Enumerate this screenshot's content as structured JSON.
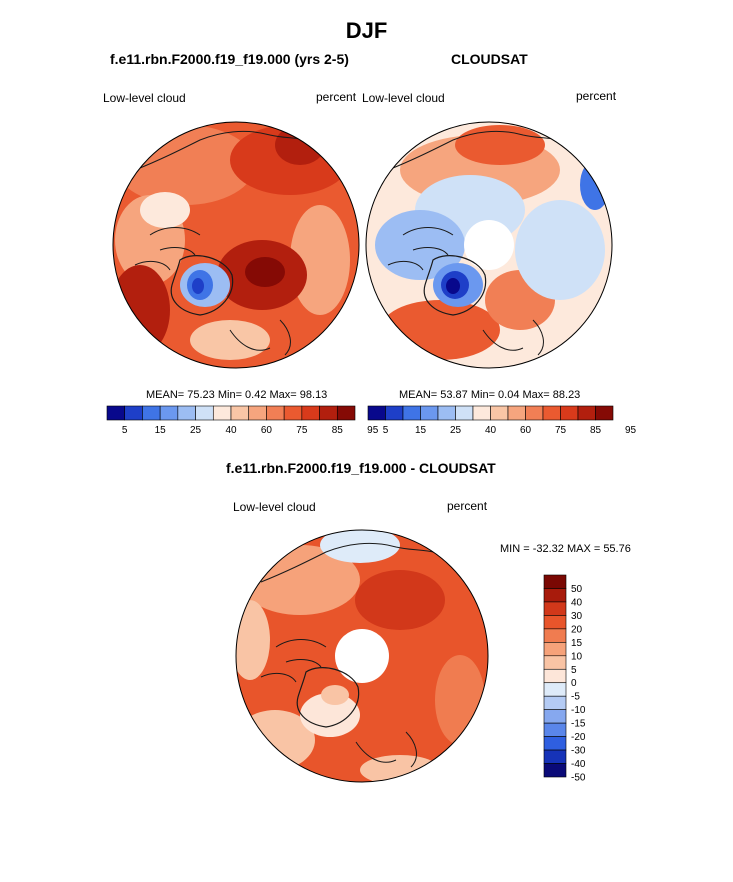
{
  "main_title": "DJF",
  "panel_model": {
    "title": "f.e11.rbn.F2000.f19_f19.000 (yrs 2-5)",
    "left_label": "Low-level cloud",
    "right_label": "percent",
    "stats": "MEAN=  75.23  Min=   0.42  Max=  98.13"
  },
  "panel_obs": {
    "title": "CLOUDSAT",
    "left_label": "Low-level cloud",
    "right_label": "percent",
    "stats": "MEAN=  53.87  Min=   0.04  Max=  88.23"
  },
  "panel_diff": {
    "title": "f.e11.rbn.F2000.f19_f19.000 - CLOUDSAT",
    "left_label": "Low-level cloud",
    "right_label": "percent",
    "minmax": "MIN = -32.32 MAX =  55.76"
  },
  "colors": {
    "abs_scale": [
      "#08088c",
      "#1e3fc8",
      "#3f74e6",
      "#6b98ef",
      "#9cbdf3",
      "#cfe1f7",
      "#fde9dc",
      "#f9c6a6",
      "#f6a57e",
      "#f17f55",
      "#ea5a30",
      "#d83a1b",
      "#b21f0e",
      "#850a05"
    ],
    "diff_scale": [
      "#0a0a78",
      "#1633b8",
      "#2f5fe0",
      "#5a86ea",
      "#86a8ef",
      "#b4cbf4",
      "#deebf9",
      "#fde6d9",
      "#f9c4a5",
      "#f6a27a",
      "#f07c50",
      "#e8552b",
      "#d2381a",
      "#a81b0c",
      "#7a0803"
    ],
    "coast": "#1a1a1a"
  },
  "chart_data": [
    {
      "type": "heatmap",
      "title": "f.e11.rbn.F2000.f19_f19.000 (yrs 2-5)",
      "variable": "Low-level cloud",
      "units": "percent",
      "projection": "north-polar stereographic",
      "mean": 75.23,
      "min": 0.42,
      "max": 98.13,
      "colorbar_levels": [
        5,
        10,
        15,
        20,
        25,
        30,
        40,
        50,
        60,
        70,
        75,
        80,
        85,
        90,
        95
      ],
      "colorbar_tick_labels": [
        "5",
        "15",
        "25",
        "40",
        "60",
        "75",
        "85",
        "95"
      ]
    },
    {
      "type": "heatmap",
      "title": "CLOUDSAT",
      "variable": "Low-level cloud",
      "units": "percent",
      "projection": "north-polar stereographic",
      "mean": 53.87,
      "min": 0.04,
      "max": 88.23,
      "colorbar_levels": [
        5,
        10,
        15,
        20,
        25,
        30,
        40,
        50,
        60,
        70,
        75,
        80,
        85,
        90,
        95
      ],
      "colorbar_tick_labels": [
        "5",
        "15",
        "25",
        "40",
        "60",
        "75",
        "85",
        "95"
      ]
    },
    {
      "type": "heatmap",
      "title": "f.e11.rbn.F2000.f19_f19.000 - CLOUDSAT",
      "variable": "Low-level cloud",
      "units": "percent",
      "projection": "north-polar stereographic",
      "min": -32.32,
      "max": 55.76,
      "colorbar_tick_labels": [
        "50",
        "40",
        "30",
        "20",
        "15",
        "10",
        "5",
        "0",
        "-5",
        "-10",
        "-15",
        "-20",
        "-30",
        "-40",
        "-50"
      ]
    }
  ]
}
